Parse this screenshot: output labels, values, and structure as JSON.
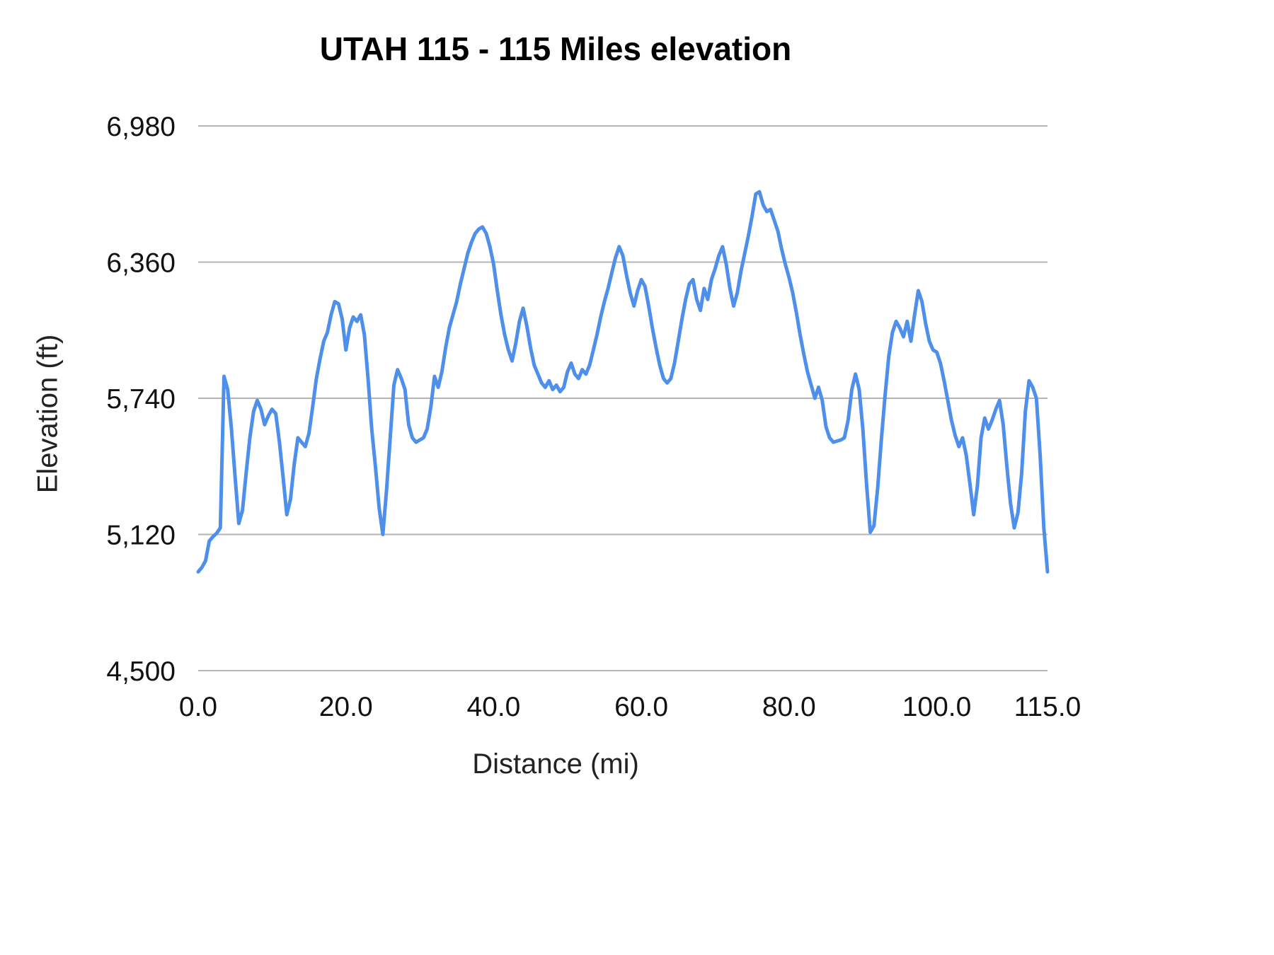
{
  "chart_data": {
    "type": "line",
    "title": "UTAH 115 - 115 Miles elevation",
    "xlabel": "Distance (mi)",
    "ylabel": "Elevation (ft)",
    "xlim": [
      0,
      115
    ],
    "ylim": [
      4500,
      6980
    ],
    "grid": true,
    "legend_position": "none",
    "line_color": "#4d8fea",
    "grid_color": "#b5b5b5",
    "y_ticks": [
      4500,
      5120,
      5740,
      6360,
      6980
    ],
    "y_tick_labels": [
      "4,500",
      "5,120",
      "5,740",
      "6,360",
      "6,980"
    ],
    "x_ticks": [
      0,
      20,
      40,
      60,
      80,
      100,
      115
    ],
    "x_tick_labels": [
      "0.0",
      "20.0",
      "40.0",
      "60.0",
      "80.0",
      "100.0",
      "115.0"
    ],
    "series": [
      {
        "name": "Elevation",
        "x_start": 0,
        "x_step": 0.5,
        "y": [
          4950,
          4970,
          5000,
          5090,
          5110,
          5125,
          5150,
          5840,
          5780,
          5600,
          5380,
          5170,
          5230,
          5400,
          5560,
          5680,
          5730,
          5690,
          5620,
          5660,
          5690,
          5670,
          5540,
          5380,
          5210,
          5280,
          5440,
          5560,
          5540,
          5520,
          5580,
          5700,
          5830,
          5920,
          6000,
          6040,
          6120,
          6180,
          6170,
          6100,
          5960,
          6060,
          6110,
          6090,
          6120,
          6030,
          5830,
          5600,
          5430,
          5240,
          5120,
          5320,
          5560,
          5800,
          5870,
          5830,
          5780,
          5620,
          5560,
          5540,
          5550,
          5560,
          5600,
          5700,
          5840,
          5790,
          5860,
          5970,
          6060,
          6120,
          6180,
          6260,
          6330,
          6400,
          6450,
          6490,
          6510,
          6520,
          6490,
          6430,
          6350,
          6230,
          6120,
          6030,
          5960,
          5910,
          5990,
          6090,
          6150,
          6070,
          5970,
          5890,
          5850,
          5810,
          5790,
          5820,
          5780,
          5800,
          5770,
          5790,
          5860,
          5900,
          5850,
          5830,
          5870,
          5850,
          5890,
          5960,
          6030,
          6110,
          6180,
          6240,
          6310,
          6380,
          6430,
          6390,
          6300,
          6220,
          6160,
          6230,
          6280,
          6250,
          6160,
          6060,
          5970,
          5890,
          5830,
          5810,
          5830,
          5900,
          6000,
          6100,
          6190,
          6260,
          6280,
          6190,
          6140,
          6240,
          6190,
          6280,
          6330,
          6390,
          6430,
          6350,
          6240,
          6160,
          6220,
          6320,
          6400,
          6480,
          6570,
          6670,
          6680,
          6620,
          6590,
          6600,
          6550,
          6500,
          6420,
          6350,
          6290,
          6220,
          6130,
          6030,
          5940,
          5860,
          5800,
          5740,
          5790,
          5730,
          5610,
          5560,
          5540,
          5545,
          5550,
          5560,
          5640,
          5780,
          5850,
          5780,
          5600,
          5350,
          5130,
          5160,
          5330,
          5550,
          5750,
          5930,
          6040,
          6090,
          6060,
          6020,
          6090,
          6000,
          6120,
          6230,
          6180,
          6080,
          6000,
          5960,
          5950,
          5900,
          5820,
          5730,
          5640,
          5570,
          5520,
          5560,
          5480,
          5350,
          5210,
          5340,
          5560,
          5650,
          5600,
          5640,
          5690,
          5730,
          5620,
          5430,
          5260,
          5150,
          5220,
          5400,
          5680,
          5820,
          5790,
          5740,
          5480,
          5150,
          4950
        ]
      }
    ]
  }
}
